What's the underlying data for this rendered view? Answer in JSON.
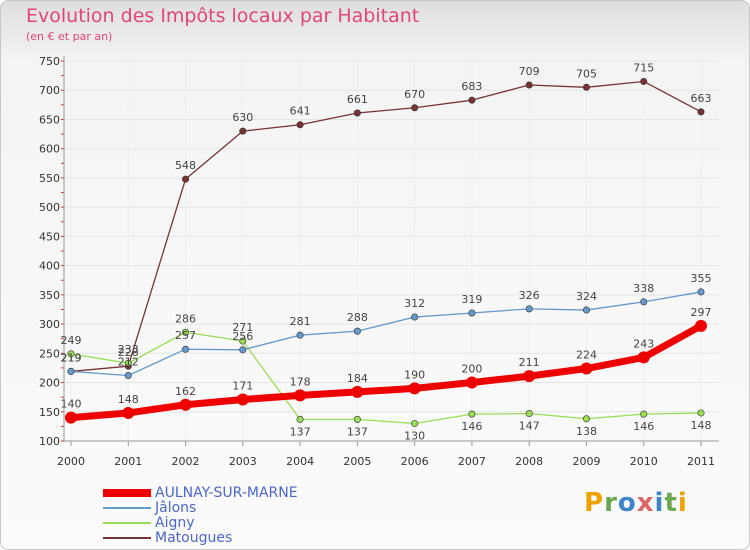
{
  "title": "Evolution des Impôts locaux par Habitant",
  "subtitle": "(en € et par an)",
  "logo_text": "Proxiti",
  "chart_data": {
    "type": "line",
    "title": "Evolution des Impôts locaux par Habitant",
    "subtitle": "(en € et par an)",
    "x": [
      "2000",
      "2001",
      "2002",
      "2003",
      "2004",
      "2005",
      "2006",
      "2007",
      "2008",
      "2009",
      "2010",
      "2011"
    ],
    "ylim": [
      100,
      750
    ],
    "yticks": [
      100,
      150,
      200,
      250,
      300,
      350,
      400,
      450,
      500,
      550,
      600,
      650,
      700,
      750
    ],
    "grid": true,
    "legend_position": "bottom-left",
    "series": [
      {
        "name": "AULNAY-SUR-MARNE",
        "color": "#ee0000",
        "values": [
          140,
          148,
          162,
          171,
          178,
          184,
          190,
          200,
          211,
          224,
          243,
          297
        ]
      },
      {
        "name": "Jâlons",
        "color": "#6699cc",
        "values": [
          219,
          212,
          257,
          256,
          281,
          288,
          312,
          319,
          326,
          324,
          338,
          355
        ]
      },
      {
        "name": "Aigny",
        "color": "#99dd55",
        "values": [
          249,
          233,
          286,
          271,
          137,
          137,
          130,
          146,
          147,
          138,
          146,
          148
        ]
      },
      {
        "name": "Matougues",
        "color": "#773333",
        "values": [
          219,
          228,
          548,
          630,
          641,
          661,
          670,
          683,
          709,
          705,
          715,
          663
        ]
      }
    ]
  }
}
